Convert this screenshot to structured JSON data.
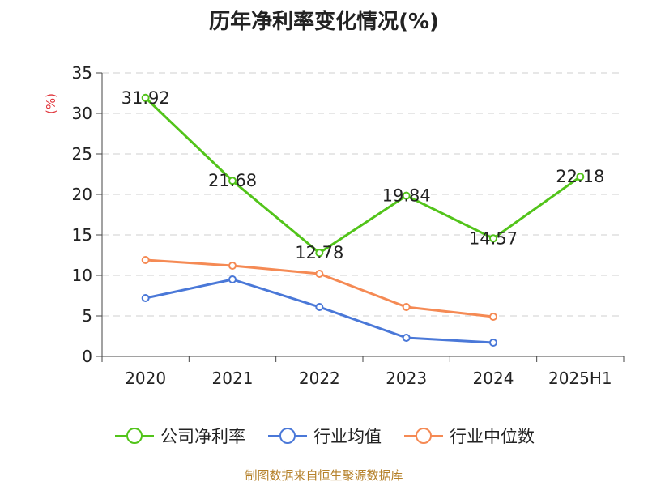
{
  "chart_data": {
    "type": "line",
    "title": "历年净利率变化情况(%)",
    "ylabel": "(%)",
    "xlabel": "",
    "categories": [
      "2020",
      "2021",
      "2022",
      "2023",
      "2024",
      "2025H1"
    ],
    "ylim": [
      0,
      35
    ],
    "yticks": [
      0,
      5,
      10,
      15,
      20,
      25,
      30,
      35
    ],
    "grid": true,
    "legend_position": "bottom",
    "series": [
      {
        "name": "公司净利率",
        "color": "#52c41a",
        "values": [
          31.92,
          21.68,
          12.78,
          19.84,
          14.57,
          22.18
        ],
        "labels": [
          "31.92",
          "21.68",
          "12.78",
          "19.84",
          "14.57",
          "22.18"
        ]
      },
      {
        "name": "行业均值",
        "color": "#4a78d8",
        "values": [
          7.2,
          9.5,
          6.1,
          2.3,
          1.7,
          null
        ]
      },
      {
        "name": "行业中位数",
        "color": "#f58a54",
        "values": [
          11.9,
          11.2,
          10.2,
          6.1,
          4.9,
          null
        ]
      }
    ]
  },
  "source": "制图数据来自恒生聚源数据库"
}
